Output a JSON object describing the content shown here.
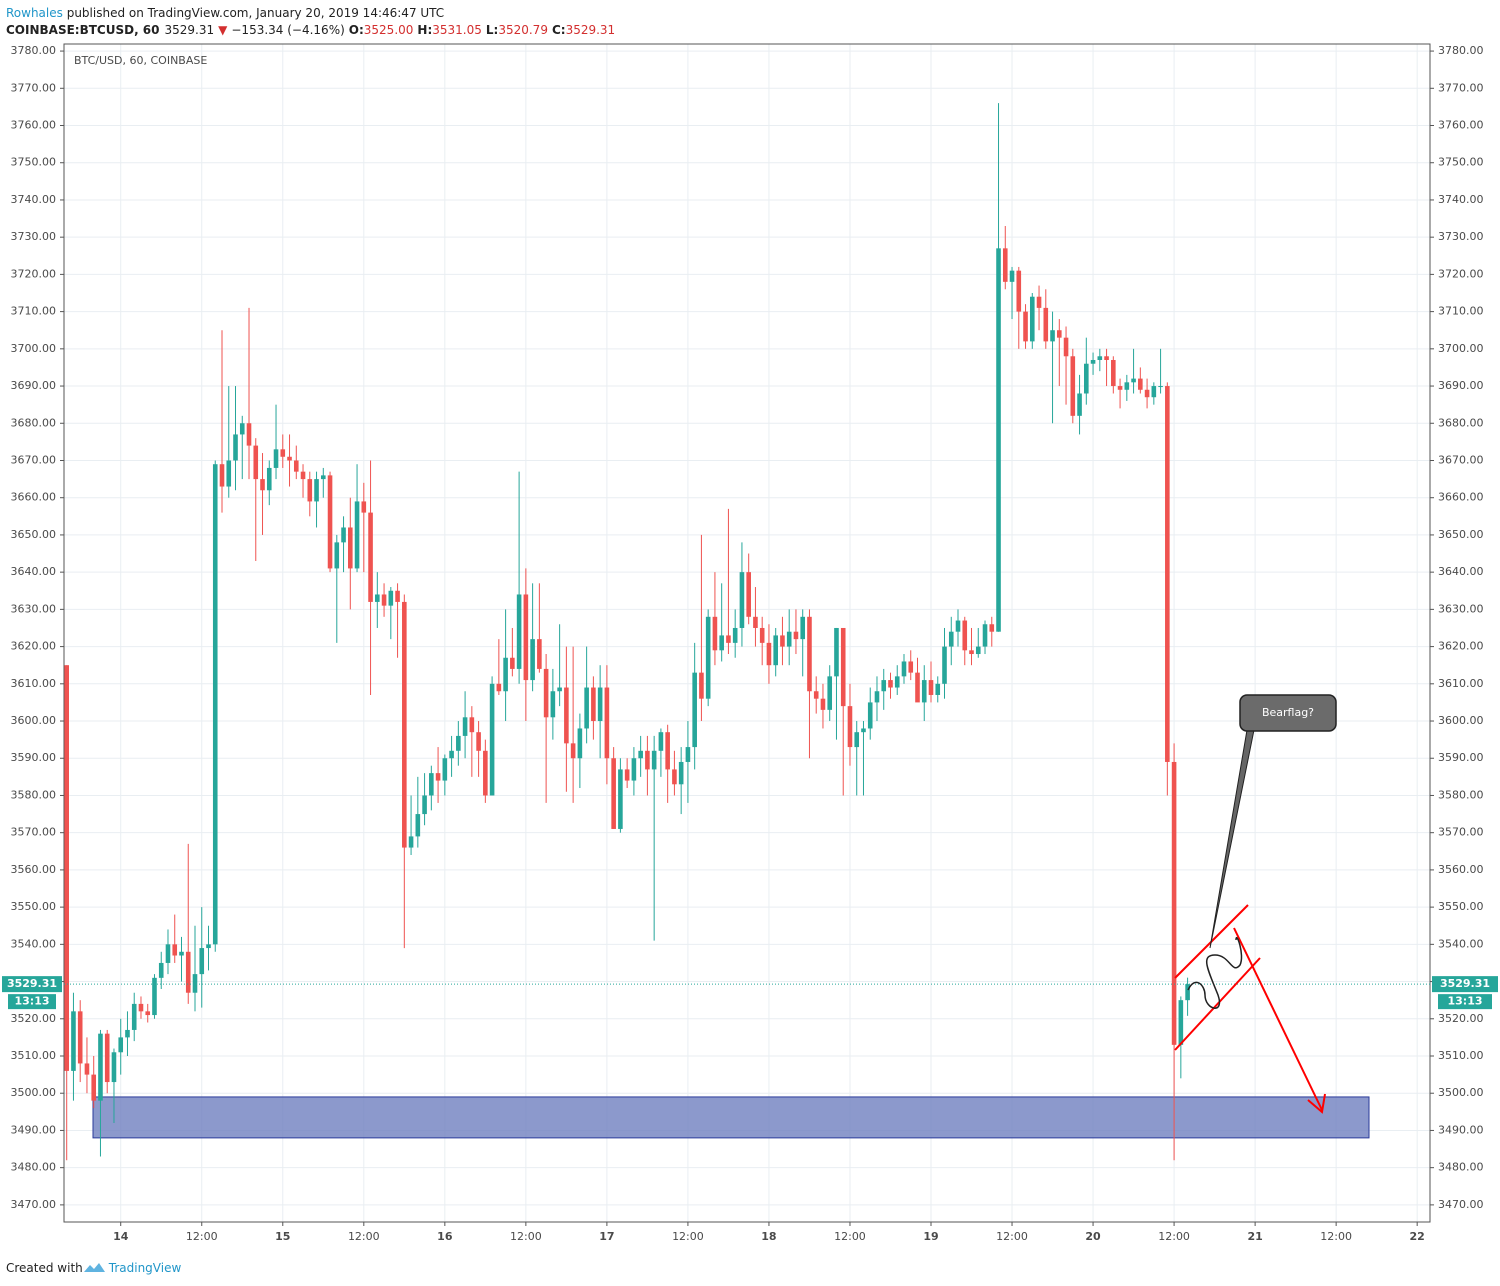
{
  "header": {
    "author": "Rowhales",
    "published": " published on TradingView.com, January 20, 2019 14:46:47 UTC",
    "symbol": "COINBASE:BTCUSD, 60",
    "price": "3529.31",
    "arrow": "▼",
    "change": "−153.34 (−4.16%)",
    "open_label": "O:",
    "open": "3525.00",
    "high_label": "H:",
    "high": "3531.05",
    "low_label": "L:",
    "low": "3520.79",
    "close_label": "C:",
    "close": "3529.31"
  },
  "footer": {
    "created": "Created with",
    "brand": "TradingView"
  },
  "chart_data": {
    "type": "candlestick",
    "title": "BTC/USD, 60, COINBASE",
    "up_color": "#26a69a",
    "down_color": "#ef5350",
    "grid": true,
    "last_price_label": "3529.31",
    "countdown": "13:13",
    "annotation": "Bearflag?",
    "zone": {
      "low": 3488,
      "high": 3499,
      "color": "#6f7fbf"
    },
    "xlim": [
      -8.4,
      193.9
    ],
    "ylim": [
      3465.4,
      3781.9
    ],
    "xticks": [
      {
        "value": 0,
        "label": "14"
      },
      {
        "value": 12,
        "label": "12:00"
      },
      {
        "value": 24,
        "label": "15"
      },
      {
        "value": 36,
        "label": "12:00"
      },
      {
        "value": 48,
        "label": "16"
      },
      {
        "value": 60,
        "label": "12:00"
      },
      {
        "value": 72,
        "label": "17"
      },
      {
        "value": 84,
        "label": "12:00"
      },
      {
        "value": 96,
        "label": "18"
      },
      {
        "value": 108,
        "label": "12:00"
      },
      {
        "value": 120,
        "label": "19"
      },
      {
        "value": 132,
        "label": "12:00"
      },
      {
        "value": 144,
        "label": "20"
      },
      {
        "value": 156,
        "label": "12:00"
      },
      {
        "value": 168,
        "label": "21"
      },
      {
        "value": 180,
        "label": "12:00"
      },
      {
        "value": 192,
        "label": "22"
      }
    ],
    "yticks": [
      {
        "value": 3470,
        "label": "3470.00"
      },
      {
        "value": 3480,
        "label": "3480.00"
      },
      {
        "value": 3490,
        "label": "3490.00"
      },
      {
        "value": 3500,
        "label": "3500.00"
      },
      {
        "value": 3510,
        "label": "3510.00"
      },
      {
        "value": 3520,
        "label": "3520.00"
      },
      {
        "value": 3530,
        "label": "3530.00"
      },
      {
        "value": 3540,
        "label": "3540.00"
      },
      {
        "value": 3550,
        "label": "3550.00"
      },
      {
        "value": 3560,
        "label": "3560.00"
      },
      {
        "value": 3570,
        "label": "3570.00"
      },
      {
        "value": 3580,
        "label": "3580.00"
      },
      {
        "value": 3590,
        "label": "3590.00"
      },
      {
        "value": 3600,
        "label": "3600.00"
      },
      {
        "value": 3610,
        "label": "3610.00"
      },
      {
        "value": 3620,
        "label": "3620.00"
      },
      {
        "value": 3630,
        "label": "3630.00"
      },
      {
        "value": 3640,
        "label": "3640.00"
      },
      {
        "value": 3650,
        "label": "3650.00"
      },
      {
        "value": 3660,
        "label": "3660.00"
      },
      {
        "value": 3670,
        "label": "3670.00"
      },
      {
        "value": 3680,
        "label": "3680.00"
      },
      {
        "value": 3690,
        "label": "3690.00"
      },
      {
        "value": 3700,
        "label": "3700.00"
      },
      {
        "value": 3710,
        "label": "3710.00"
      },
      {
        "value": 3720,
        "label": "3720.00"
      },
      {
        "value": 3730,
        "label": "3730.00"
      },
      {
        "value": 3740,
        "label": "3740.00"
      },
      {
        "value": 3750,
        "label": "3750.00"
      },
      {
        "value": 3760,
        "label": "3760.00"
      },
      {
        "value": 3770,
        "label": "3770.00"
      },
      {
        "value": 3780,
        "label": "3780.00"
      }
    ],
    "x": [
      -8,
      -7,
      -6,
      -5,
      -4,
      -3,
      -2,
      -1,
      0,
      1,
      2,
      3,
      4,
      5,
      6,
      7,
      8,
      9,
      10,
      11,
      12,
      13,
      14,
      15,
      16,
      17,
      18,
      19,
      20,
      21,
      22,
      23,
      24,
      25,
      26,
      27,
      28,
      29,
      30,
      31,
      32,
      33,
      34,
      35,
      36,
      37,
      38,
      39,
      40,
      41,
      42,
      43,
      44,
      45,
      46,
      47,
      48,
      49,
      50,
      51,
      52,
      53,
      54,
      55,
      56,
      57,
      58,
      59,
      60,
      61,
      62,
      63,
      64,
      65,
      66,
      67,
      68,
      69,
      70,
      71,
      72,
      73,
      74,
      75,
      76,
      77,
      78,
      79,
      80,
      81,
      82,
      83,
      84,
      85,
      86,
      87,
      88,
      89,
      90,
      91,
      92,
      93,
      94,
      95,
      96,
      97,
      98,
      99,
      100,
      101,
      102,
      103,
      104,
      105,
      106,
      107,
      108,
      109,
      110,
      111,
      112,
      113,
      114,
      115,
      116,
      117,
      118,
      119,
      120,
      121,
      122,
      123,
      124,
      125,
      126,
      127,
      128,
      129,
      130,
      131,
      132,
      133,
      134,
      135,
      136,
      137,
      138,
      139,
      140,
      141,
      142,
      143,
      144,
      145,
      146,
      147,
      148,
      149,
      150,
      151,
      152,
      153,
      154,
      155,
      156,
      157,
      158
    ],
    "ohlc": [
      [
        3615,
        3615,
        3482,
        3506
      ],
      [
        3506,
        3527,
        3498,
        3522
      ],
      [
        3522,
        3525,
        3503,
        3508
      ],
      [
        3508,
        3515,
        3500,
        3505
      ],
      [
        3505,
        3510,
        3496,
        3498
      ],
      [
        3498,
        3517,
        3483,
        3516
      ],
      [
        3516,
        3517,
        3500,
        3503
      ],
      [
        3503,
        3512,
        3492,
        3511
      ],
      [
        3511,
        3520,
        3505,
        3515
      ],
      [
        3515,
        3522,
        3510,
        3517
      ],
      [
        3517,
        3527,
        3514,
        3524
      ],
      [
        3524,
        3526,
        3520,
        3522
      ],
      [
        3522,
        3524,
        3519,
        3521
      ],
      [
        3521,
        3532,
        3520,
        3531
      ],
      [
        3531,
        3538,
        3528,
        3535
      ],
      [
        3535,
        3544,
        3532,
        3540
      ],
      [
        3540,
        3548,
        3535,
        3537
      ],
      [
        3537,
        3542,
        3530,
        3538
      ],
      [
        3538,
        3567,
        3524,
        3527
      ],
      [
        3527,
        3545,
        3522,
        3532
      ],
      [
        3532,
        3550,
        3523,
        3539
      ],
      [
        3539,
        3545,
        3533,
        3540
      ],
      [
        3540,
        3670,
        3538,
        3669
      ],
      [
        3669,
        3705,
        3656,
        3663
      ],
      [
        3663,
        3690,
        3660,
        3670
      ],
      [
        3670,
        3690,
        3662,
        3677
      ],
      [
        3677,
        3682,
        3665,
        3680
      ],
      [
        3680,
        3711,
        3665,
        3674
      ],
      [
        3674,
        3676,
        3643,
        3665
      ],
      [
        3665,
        3672,
        3650,
        3662
      ],
      [
        3662,
        3670,
        3658,
        3668
      ],
      [
        3668,
        3685,
        3665,
        3673
      ],
      [
        3673,
        3677,
        3668,
        3671
      ],
      [
        3671,
        3677,
        3663,
        3670
      ],
      [
        3670,
        3674,
        3665,
        3667
      ],
      [
        3667,
        3669,
        3660,
        3665
      ],
      [
        3665,
        3667,
        3655,
        3659
      ],
      [
        3659,
        3667,
        3652,
        3665
      ],
      [
        3665,
        3668,
        3660,
        3666
      ],
      [
        3666,
        3667,
        3640,
        3641
      ],
      [
        3641,
        3650,
        3621,
        3648
      ],
      [
        3648,
        3655,
        3640,
        3652
      ],
      [
        3652,
        3660,
        3630,
        3641
      ],
      [
        3641,
        3669,
        3640,
        3659
      ],
      [
        3659,
        3664,
        3640,
        3656
      ],
      [
        3656,
        3670,
        3607,
        3632
      ],
      [
        3632,
        3640,
        3625,
        3634
      ],
      [
        3634,
        3637,
        3628,
        3631
      ],
      [
        3631,
        3636,
        3622,
        3635
      ],
      [
        3635,
        3637,
        3617,
        3632
      ],
      [
        3632,
        3634,
        3539,
        3566
      ],
      [
        3566,
        3580,
        3564,
        3569
      ],
      [
        3569,
        3585,
        3566,
        3575
      ],
      [
        3575,
        3586,
        3572,
        3580
      ],
      [
        3580,
        3588,
        3576,
        3586
      ],
      [
        3586,
        3593,
        3578,
        3584
      ],
      [
        3584,
        3591,
        3580,
        3590
      ],
      [
        3590,
        3596,
        3585,
        3592
      ],
      [
        3592,
        3600,
        3588,
        3596
      ],
      [
        3596,
        3608,
        3590,
        3601
      ],
      [
        3601,
        3604,
        3585,
        3597
      ],
      [
        3597,
        3600,
        3585,
        3592
      ],
      [
        3592,
        3595,
        3578,
        3580
      ],
      [
        3580,
        3612,
        3580,
        3610
      ],
      [
        3610,
        3622,
        3607,
        3608
      ],
      [
        3608,
        3630,
        3600,
        3617
      ],
      [
        3617,
        3625,
        3612,
        3614
      ],
      [
        3614,
        3667,
        3610,
        3634
      ],
      [
        3634,
        3641,
        3600,
        3611
      ],
      [
        3611,
        3637,
        3608,
        3622
      ],
      [
        3622,
        3637,
        3613,
        3614
      ],
      [
        3614,
        3618,
        3578,
        3601
      ],
      [
        3601,
        3614,
        3595,
        3608
      ],
      [
        3608,
        3626,
        3604,
        3609
      ],
      [
        3609,
        3620,
        3581,
        3594
      ],
      [
        3594,
        3620,
        3578,
        3590
      ],
      [
        3590,
        3602,
        3582,
        3598
      ],
      [
        3598,
        3620,
        3594,
        3609
      ],
      [
        3609,
        3612,
        3595,
        3600
      ],
      [
        3600,
        3615,
        3590,
        3609
      ],
      [
        3609,
        3615,
        3583,
        3590
      ],
      [
        3590,
        3593,
        3571,
        3571
      ],
      [
        3571,
        3590,
        3570,
        3587
      ],
      [
        3587,
        3590,
        3582,
        3584
      ],
      [
        3584,
        3593,
        3580,
        3590
      ],
      [
        3590,
        3596,
        3585,
        3592
      ],
      [
        3592,
        3596,
        3580,
        3587
      ],
      [
        3587,
        3596,
        3541,
        3592
      ],
      [
        3592,
        3598,
        3585,
        3597
      ],
      [
        3597,
        3599,
        3578,
        3587
      ],
      [
        3587,
        3592,
        3580,
        3583
      ],
      [
        3583,
        3593,
        3575,
        3589
      ],
      [
        3589,
        3600,
        3578,
        3593
      ],
      [
        3593,
        3621,
        3587,
        3613
      ],
      [
        3613,
        3650,
        3600,
        3606
      ],
      [
        3606,
        3630,
        3604,
        3628
      ],
      [
        3628,
        3640,
        3615,
        3619
      ],
      [
        3619,
        3637,
        3616,
        3623
      ],
      [
        3623,
        3657,
        3618,
        3621
      ],
      [
        3621,
        3630,
        3617,
        3625
      ],
      [
        3625,
        3648,
        3620,
        3640
      ],
      [
        3640,
        3645,
        3626,
        3628
      ],
      [
        3628,
        3636,
        3620,
        3625
      ],
      [
        3625,
        3628,
        3615,
        3621
      ],
      [
        3621,
        3626,
        3610,
        3615
      ],
      [
        3615,
        3625,
        3612,
        3623
      ],
      [
        3623,
        3628,
        3615,
        3620
      ],
      [
        3620,
        3630,
        3615,
        3624
      ],
      [
        3624,
        3630,
        3618,
        3622
      ],
      [
        3622,
        3630,
        3612,
        3628
      ],
      [
        3628,
        3630,
        3590,
        3608
      ],
      [
        3608,
        3612,
        3602,
        3606
      ],
      [
        3606,
        3610,
        3598,
        3603
      ],
      [
        3603,
        3615,
        3600,
        3612
      ],
      [
        3612,
        3625,
        3595,
        3625
      ],
      [
        3625,
        3625,
        3580,
        3604
      ],
      [
        3604,
        3610,
        3588,
        3593
      ],
      [
        3593,
        3600,
        3580,
        3597
      ],
      [
        3597,
        3600,
        3580,
        3598
      ],
      [
        3598,
        3609,
        3595,
        3605
      ],
      [
        3605,
        3612,
        3600,
        3608
      ],
      [
        3608,
        3614,
        3603,
        3611
      ],
      [
        3611,
        3613,
        3606,
        3609
      ],
      [
        3609,
        3615,
        3607,
        3612
      ],
      [
        3612,
        3618,
        3610,
        3616
      ],
      [
        3616,
        3619,
        3611,
        3613
      ],
      [
        3613,
        3617,
        3608,
        3605
      ],
      [
        3605,
        3615,
        3600,
        3611
      ],
      [
        3611,
        3616,
        3605,
        3607
      ],
      [
        3607,
        3612,
        3605,
        3610
      ],
      [
        3610,
        3625,
        3606,
        3620
      ],
      [
        3620,
        3628,
        3615,
        3624
      ],
      [
        3624,
        3630,
        3620,
        3627
      ],
      [
        3627,
        3628,
        3615,
        3619
      ],
      [
        3619,
        3625,
        3615,
        3618
      ],
      [
        3618,
        3625,
        3617,
        3620
      ],
      [
        3620,
        3627,
        3618,
        3626
      ],
      [
        3626,
        3628,
        3620,
        3624
      ],
      [
        3624,
        3766,
        3624,
        3727
      ],
      [
        3727,
        3733,
        3716,
        3718
      ],
      [
        3718,
        3722,
        3708,
        3721
      ],
      [
        3721,
        3722,
        3700,
        3710
      ],
      [
        3710,
        3712,
        3700,
        3702
      ],
      [
        3702,
        3715,
        3700,
        3714
      ],
      [
        3714,
        3717,
        3705,
        3711
      ],
      [
        3711,
        3716,
        3700,
        3702
      ],
      [
        3702,
        3710,
        3680,
        3705
      ],
      [
        3705,
        3708,
        3690,
        3703
      ],
      [
        3703,
        3706,
        3685,
        3698
      ],
      [
        3698,
        3700,
        3680,
        3682
      ],
      [
        3682,
        3693,
        3677,
        3688
      ],
      [
        3688,
        3703,
        3685,
        3696
      ],
      [
        3696,
        3699,
        3693,
        3697
      ],
      [
        3697,
        3700,
        3694,
        3698
      ],
      [
        3698,
        3700,
        3690,
        3697
      ],
      [
        3697,
        3698,
        3688,
        3690
      ],
      [
        3690,
        3692,
        3684,
        3689
      ],
      [
        3689,
        3693,
        3686,
        3691
      ],
      [
        3691,
        3700,
        3688,
        3692
      ],
      [
        3692,
        3695,
        3688,
        3689
      ],
      [
        3689,
        3692,
        3684,
        3687
      ],
      [
        3687,
        3691,
        3685,
        3690
      ],
      [
        3690,
        3700,
        3688,
        3690
      ],
      [
        3690,
        3691,
        3580,
        3589
      ],
      [
        3589,
        3594,
        3482,
        3513
      ],
      [
        3513,
        3526,
        3504,
        3525
      ],
      [
        3525,
        3531.05,
        3520.79,
        3529.31
      ]
    ]
  }
}
